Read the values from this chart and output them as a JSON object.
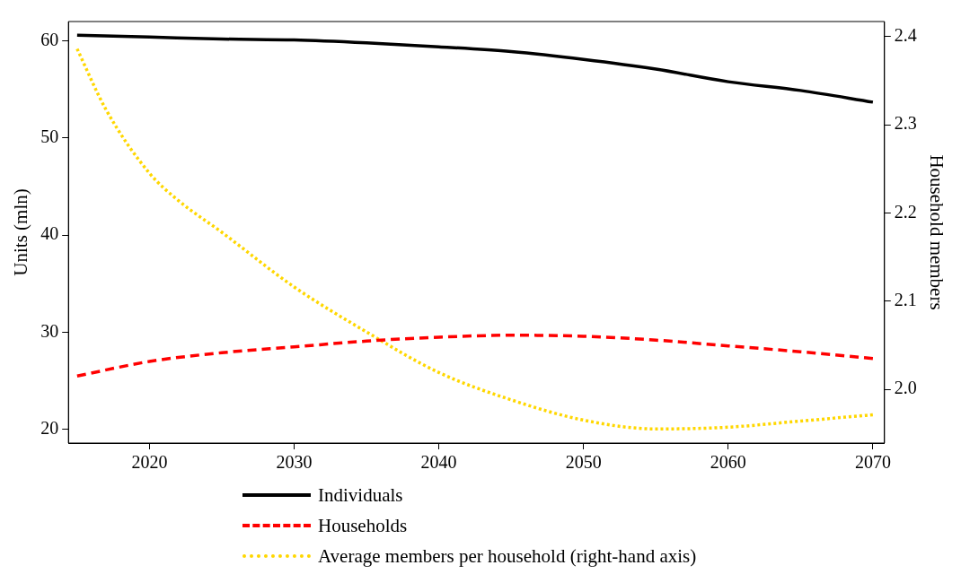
{
  "chart_data": {
    "type": "line",
    "ylabel": "Units (mln)",
    "y2label": "Household members",
    "xlim": [
      2014.4,
      2070.8
    ],
    "xticks": [
      2020,
      2030,
      2040,
      2050,
      2060,
      2070
    ],
    "ylim": [
      18.6,
      62
    ],
    "yticks": [
      20,
      30,
      40,
      50,
      60
    ],
    "y2lim": [
      1.939,
      2.417
    ],
    "y2ticks": [
      {
        "value": 2.0,
        "label": "2.0"
      },
      2.1,
      2.2,
      2.3,
      2.4
    ],
    "grid": false,
    "legend": "bottom",
    "marker": "none",
    "x": [
      2015,
      2020,
      2025,
      2030,
      2035,
      2040,
      2045,
      2050,
      2055,
      2060,
      2065,
      2070
    ],
    "series": [
      {
        "name": "Individuals",
        "color": "#000000",
        "line_style": "solid",
        "values": [
          60.6,
          60.4,
          60.2,
          60.1,
          59.8,
          59.4,
          58.9,
          58.1,
          57.1,
          55.8,
          54.9,
          53.7
        ]
      },
      {
        "name": "Households",
        "color": "#ff0000",
        "line_style": "dashed",
        "values": [
          25.5,
          27.0,
          27.9,
          28.5,
          29.1,
          29.5,
          29.7,
          29.6,
          29.2,
          28.6,
          28.0,
          27.3
        ]
      },
      {
        "name": "Average members per household (right-hand axis)",
        "color": "#ffd700",
        "line_style": "dotted",
        "axis": "y2",
        "x": [
          2015,
          2017,
          2020,
          2022,
          2025,
          2030,
          2035,
          2040,
          2045,
          2050,
          2055,
          2060,
          2065,
          2070
        ],
        "values": [
          2.386,
          2.317,
          2.245,
          2.214,
          2.178,
          2.116,
          2.065,
          2.019,
          1.988,
          1.965,
          1.955,
          1.957,
          1.964,
          1.971
        ]
      }
    ]
  }
}
